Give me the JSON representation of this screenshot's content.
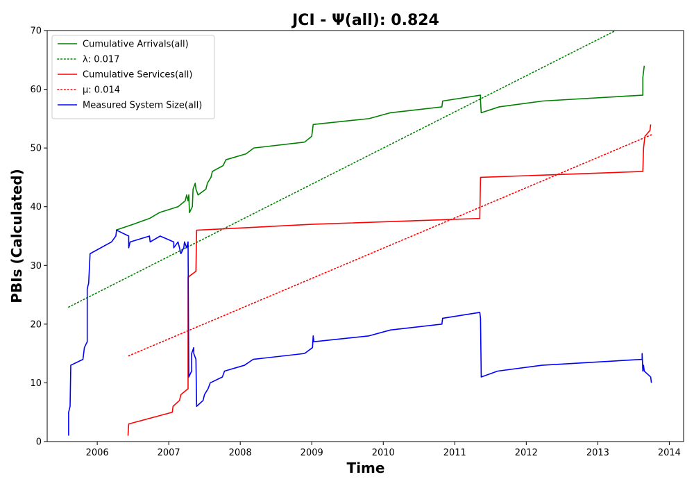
{
  "chart_data": {
    "type": "line",
    "title": "JCI -  Ψ(all): 0.824",
    "xlabel": "Time",
    "ylabel": "PBIs (Calculated)",
    "xlim": [
      2005.3,
      2014.2
    ],
    "ylim": [
      0,
      70
    ],
    "x_ticks": [
      2006,
      2007,
      2008,
      2009,
      2010,
      2011,
      2012,
      2013,
      2014
    ],
    "y_ticks": [
      0,
      10,
      20,
      30,
      40,
      50,
      60,
      70
    ],
    "grid": false,
    "legend_position": "top-left",
    "series": [
      {
        "name": "Cumulative Arrivals(all)",
        "color": "#008000",
        "style": "solid",
        "points": [
          [
            2006.26,
            36
          ],
          [
            2006.5,
            37
          ],
          [
            2006.73,
            38
          ],
          [
            2006.87,
            39
          ],
          [
            2007.13,
            40
          ],
          [
            2007.23,
            41
          ],
          [
            2007.25,
            42
          ],
          [
            2007.27,
            41
          ],
          [
            2007.28,
            42
          ],
          [
            2007.29,
            39
          ],
          [
            2007.33,
            40
          ],
          [
            2007.34,
            43
          ],
          [
            2007.37,
            44
          ],
          [
            2007.38,
            43
          ],
          [
            2007.41,
            42
          ],
          [
            2007.52,
            43
          ],
          [
            2007.54,
            44
          ],
          [
            2007.59,
            45
          ],
          [
            2007.61,
            46
          ],
          [
            2007.76,
            47
          ],
          [
            2007.8,
            48
          ],
          [
            2008.08,
            49
          ],
          [
            2008.19,
            50
          ],
          [
            2008.9,
            51
          ],
          [
            2009.0,
            52
          ],
          [
            2009.02,
            54
          ],
          [
            2009.8,
            55
          ],
          [
            2010.1,
            56
          ],
          [
            2010.82,
            57
          ],
          [
            2010.83,
            58
          ],
          [
            2011.36,
            59
          ],
          [
            2011.36,
            58
          ],
          [
            2011.37,
            56
          ],
          [
            2011.62,
            57
          ],
          [
            2012.23,
            58
          ],
          [
            2013.63,
            59
          ],
          [
            2013.63,
            62
          ],
          [
            2013.64,
            63
          ],
          [
            2013.65,
            64
          ]
        ]
      },
      {
        "name": "λ: 0.017",
        "color": "#008000",
        "style": "dotted",
        "points": [
          [
            2005.6,
            22.9
          ],
          [
            2013.25,
            70
          ]
        ]
      },
      {
        "name": "Cumulative Services(all)",
        "color": "#ff0000",
        "style": "solid",
        "points": [
          [
            2006.43,
            1
          ],
          [
            2006.44,
            3
          ],
          [
            2007.05,
            5
          ],
          [
            2007.06,
            6
          ],
          [
            2007.15,
            7
          ],
          [
            2007.17,
            8
          ],
          [
            2007.27,
            9
          ],
          [
            2007.27,
            28
          ],
          [
            2007.38,
            29
          ],
          [
            2007.39,
            36
          ],
          [
            2009.0,
            37
          ],
          [
            2011.35,
            38
          ],
          [
            2011.36,
            45
          ],
          [
            2013.63,
            46
          ],
          [
            2013.64,
            50
          ],
          [
            2013.66,
            52
          ],
          [
            2013.73,
            53
          ],
          [
            2013.74,
            54
          ]
        ]
      },
      {
        "name": "μ: 0.014",
        "color": "#ff0000",
        "style": "dotted",
        "points": [
          [
            2006.44,
            14.6
          ],
          [
            2013.76,
            52.3
          ]
        ]
      },
      {
        "name": "Measured System Size(all)",
        "color": "#0000ff",
        "style": "solid",
        "points": [
          [
            2005.6,
            1
          ],
          [
            2005.6,
            5
          ],
          [
            2005.62,
            6
          ],
          [
            2005.63,
            13
          ],
          [
            2005.8,
            14
          ],
          [
            2005.82,
            16
          ],
          [
            2005.86,
            17
          ],
          [
            2005.86,
            26
          ],
          [
            2005.88,
            27
          ],
          [
            2005.9,
            32
          ],
          [
            2006.2,
            34
          ],
          [
            2006.26,
            35
          ],
          [
            2006.27,
            36
          ],
          [
            2006.44,
            35
          ],
          [
            2006.44,
            33
          ],
          [
            2006.46,
            34
          ],
          [
            2006.73,
            35
          ],
          [
            2006.74,
            34
          ],
          [
            2006.88,
            35
          ],
          [
            2007.07,
            34
          ],
          [
            2007.07,
            33
          ],
          [
            2007.13,
            34
          ],
          [
            2007.17,
            32
          ],
          [
            2007.21,
            33
          ],
          [
            2007.22,
            34
          ],
          [
            2007.25,
            33
          ],
          [
            2007.27,
            34
          ],
          [
            2007.28,
            11
          ],
          [
            2007.32,
            12
          ],
          [
            2007.32,
            15
          ],
          [
            2007.35,
            16
          ],
          [
            2007.35,
            15
          ],
          [
            2007.38,
            14
          ],
          [
            2007.39,
            6
          ],
          [
            2007.48,
            7
          ],
          [
            2007.5,
            8
          ],
          [
            2007.55,
            9
          ],
          [
            2007.58,
            10
          ],
          [
            2007.75,
            11
          ],
          [
            2007.78,
            12
          ],
          [
            2008.06,
            13
          ],
          [
            2008.18,
            14
          ],
          [
            2008.9,
            15
          ],
          [
            2009.01,
            16
          ],
          [
            2009.02,
            18
          ],
          [
            2009.03,
            17
          ],
          [
            2009.8,
            18
          ],
          [
            2010.1,
            19
          ],
          [
            2010.82,
            20
          ],
          [
            2010.83,
            21
          ],
          [
            2011.35,
            22
          ],
          [
            2011.36,
            21
          ],
          [
            2011.37,
            11
          ],
          [
            2011.6,
            12
          ],
          [
            2012.22,
            13
          ],
          [
            2013.62,
            14
          ],
          [
            2013.62,
            15
          ],
          [
            2013.63,
            12
          ],
          [
            2013.64,
            13
          ],
          [
            2013.65,
            12
          ],
          [
            2013.74,
            11
          ],
          [
            2013.75,
            10
          ]
        ]
      }
    ]
  }
}
